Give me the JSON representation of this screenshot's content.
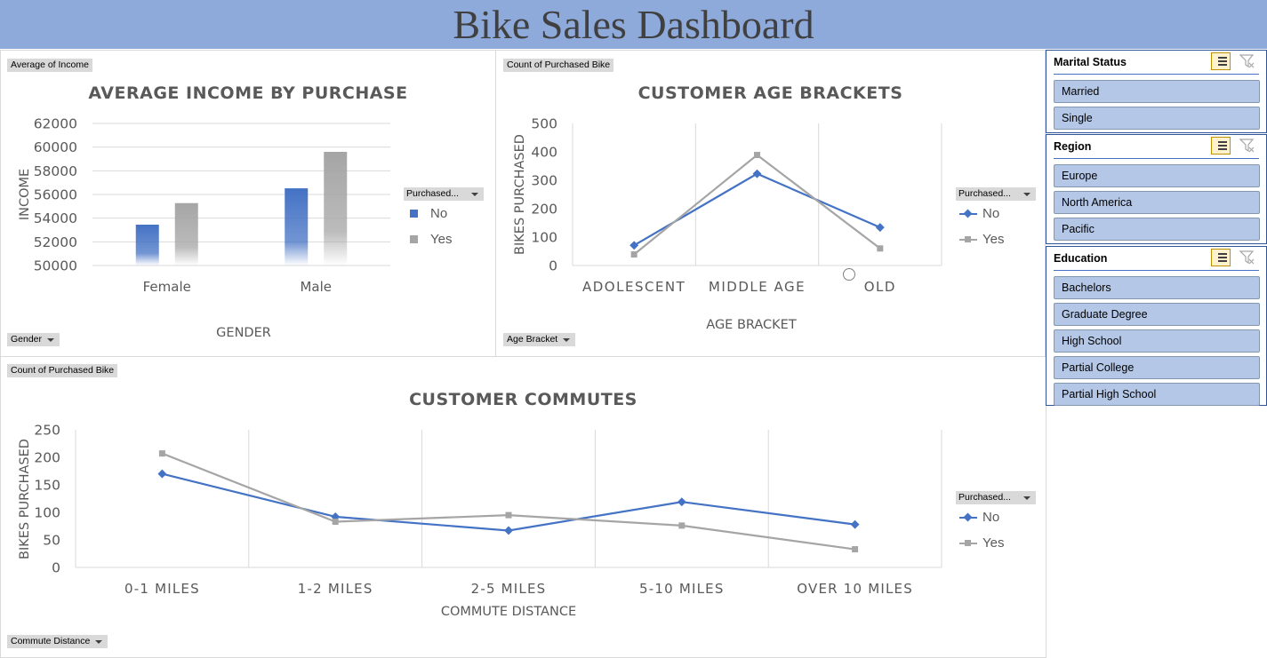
{
  "dashboard": {
    "title": "Bike Sales Dashboard"
  },
  "colors": {
    "no": "#4472c4",
    "yes": "#a5a5a5",
    "header": "#8eaadb",
    "slicer_item": "#b4c7e7"
  },
  "income_panel": {
    "value_tag": "Average of Income",
    "axis_tag": "Gender",
    "legend_title": "Purchased...",
    "legend": [
      "No",
      "Yes"
    ]
  },
  "age_panel": {
    "value_tag": "Count of Purchased Bike",
    "axis_tag": "Age Bracket",
    "legend_title": "Purchased...",
    "legend": [
      "No",
      "Yes"
    ]
  },
  "commute_panel": {
    "value_tag": "Count of Purchased Bike",
    "axis_tag": "Commute Distance",
    "legend_title": "Purchased...",
    "legend": [
      "No",
      "Yes"
    ]
  },
  "chart_data": [
    {
      "type": "bar",
      "title": "AVERAGE INCOME BY PURCHASE",
      "xlabel": "GENDER",
      "ylabel": "INCOME",
      "categories": [
        "Female",
        "Male"
      ],
      "series": [
        {
          "name": "No",
          "values": [
            53450,
            56520
          ]
        },
        {
          "name": "Yes",
          "values": [
            55270,
            59600
          ]
        }
      ],
      "ylim": [
        50000,
        62000
      ],
      "yticks": [
        "62000",
        "60000",
        "58000",
        "56000",
        "54000",
        "52000",
        "50000"
      ],
      "grid": true,
      "legend": "right"
    },
    {
      "type": "line",
      "title": "CUSTOMER AGE BRACKETS",
      "xlabel": "AGE BRACKET",
      "ylabel": "BIKES PURCHASED",
      "categories": [
        "ADOLESCENT",
        "MIDDLE AGE",
        "OLD"
      ],
      "series": [
        {
          "name": "No",
          "values": [
            71,
            323,
            134
          ]
        },
        {
          "name": "Yes",
          "values": [
            39,
            389,
            60
          ]
        }
      ],
      "ylim": [
        0,
        500
      ],
      "yticks": [
        "500",
        "400",
        "300",
        "200",
        "100",
        "0"
      ],
      "grid": true,
      "legend": "right"
    },
    {
      "type": "line",
      "title": "CUSTOMER COMMUTES",
      "xlabel": "COMMUTE DISTANCE",
      "ylabel": "BIKES PURCHASED",
      "categories": [
        "0-1 MILES",
        "1-2 MILES",
        "2-5 MILES",
        "5-10 MILES",
        "OVER 10 MILES"
      ],
      "series": [
        {
          "name": "No",
          "values": [
            170,
            92,
            67,
            119,
            78
          ]
        },
        {
          "name": "Yes",
          "values": [
            207,
            83,
            95,
            76,
            33
          ]
        }
      ],
      "ylim": [
        0,
        250
      ],
      "yticks": [
        "250",
        "200",
        "150",
        "100",
        "50",
        "0"
      ],
      "grid": true,
      "legend": "right"
    }
  ],
  "slicers": {
    "marital": {
      "title": "Marital Status",
      "items": [
        "Married",
        "Single"
      ]
    },
    "region": {
      "title": "Region",
      "items": [
        "Europe",
        "North America",
        "Pacific"
      ]
    },
    "education": {
      "title": "Education",
      "items": [
        "Bachelors",
        "Graduate Degree",
        "High School",
        "Partial College",
        "Partial High School"
      ]
    }
  }
}
